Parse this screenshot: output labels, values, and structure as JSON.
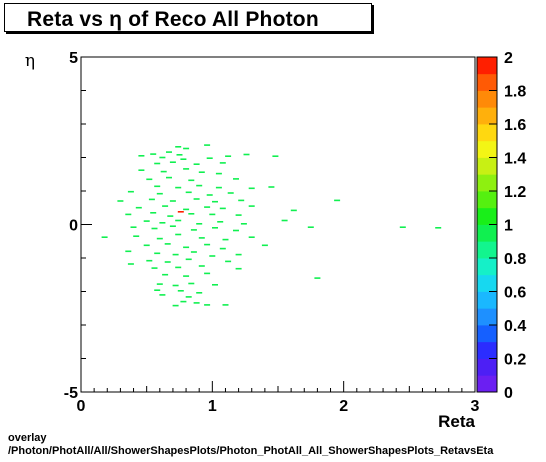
{
  "title": "Reta vs  η of Reco All Photon",
  "footer": {
    "line1": "overlay",
    "line2": "/Photon/PhotAll/All/ShowerShapesPlots/Photon_PhotAll_All_ShowerShapesPlots_RetavsEta"
  },
  "chart_data": {
    "type": "heatmap",
    "title": "Reta vs  η of Reco All Photon",
    "xlabel": "Reta",
    "ylabel": "η",
    "xlim": [
      0,
      3
    ],
    "ylim": [
      -5,
      5
    ],
    "x_ticks": [
      "0",
      "1",
      "2",
      "3"
    ],
    "y_ticks": [
      "-5",
      "0",
      "5"
    ],
    "colorbar": {
      "range": [
        0,
        2
      ],
      "ticks": [
        "0",
        "0.2",
        "0.4",
        "0.6",
        "0.8",
        "1",
        "1.2",
        "1.4",
        "1.6",
        "1.8",
        "2"
      ],
      "colors": [
        "#6b1ff2",
        "#4d1ff5",
        "#2b2dff",
        "#1560ff",
        "#1e90ff",
        "#1ab8ff",
        "#17d8f0",
        "#15f0c8",
        "#12f58e",
        "#10f050",
        "#19ef19",
        "#55f010",
        "#8ef010",
        "#c8f014",
        "#f3f515",
        "#ffd810",
        "#ffb00c",
        "#ff8a08",
        "#ff5a05",
        "#ff1f00"
      ]
    },
    "bins": [
      [
        0.74,
        2.32,
        1
      ],
      [
        0.8,
        2.27,
        1
      ],
      [
        0.96,
        2.37,
        1
      ],
      [
        0.67,
        2.16,
        1
      ],
      [
        0.75,
        2.08,
        1
      ],
      [
        0.46,
        2.05,
        1
      ],
      [
        0.55,
        2.1,
        1
      ],
      [
        0.62,
        2.0,
        1
      ],
      [
        0.78,
        1.95,
        1
      ],
      [
        0.98,
        1.98,
        1
      ],
      [
        1.12,
        2.04,
        1
      ],
      [
        1.26,
        2.09,
        1
      ],
      [
        1.48,
        2.04,
        1
      ],
      [
        0.58,
        1.82,
        1
      ],
      [
        0.7,
        1.86,
        1
      ],
      [
        0.88,
        1.8,
        1
      ],
      [
        1.08,
        1.84,
        1
      ],
      [
        0.46,
        1.62,
        1
      ],
      [
        0.63,
        1.58,
        1
      ],
      [
        0.8,
        1.66,
        1
      ],
      [
        0.92,
        1.56,
        1
      ],
      [
        1.05,
        1.52,
        1
      ],
      [
        0.52,
        1.35,
        1
      ],
      [
        0.67,
        1.4,
        1
      ],
      [
        0.84,
        1.32,
        1
      ],
      [
        1.18,
        1.36,
        1
      ],
      [
        0.58,
        1.14,
        1
      ],
      [
        0.74,
        1.1,
        1
      ],
      [
        0.9,
        1.16,
        1
      ],
      [
        1.05,
        1.1,
        1
      ],
      [
        1.3,
        1.08,
        1
      ],
      [
        0.38,
        0.98,
        1
      ],
      [
        0.6,
        0.92,
        1
      ],
      [
        0.82,
        0.96,
        1
      ],
      [
        0.98,
        0.88,
        1
      ],
      [
        1.14,
        0.94,
        1
      ],
      [
        1.45,
        1.12,
        1
      ],
      [
        0.54,
        0.75,
        1
      ],
      [
        0.7,
        0.7,
        1
      ],
      [
        0.88,
        0.76,
        1
      ],
      [
        1.02,
        0.68,
        1
      ],
      [
        1.22,
        0.72,
        1
      ],
      [
        0.3,
        0.7,
        1
      ],
      [
        0.44,
        0.5,
        1
      ],
      [
        0.64,
        0.55,
        1
      ],
      [
        0.8,
        0.45,
        1
      ],
      [
        0.96,
        0.52,
        1
      ],
      [
        1.08,
        0.48,
        1
      ],
      [
        1.3,
        0.55,
        1
      ],
      [
        1.95,
        0.72,
        1
      ],
      [
        0.36,
        0.3,
        1
      ],
      [
        0.55,
        0.35,
        1
      ],
      [
        0.68,
        0.25,
        1
      ],
      [
        0.84,
        0.32,
        1
      ],
      [
        0.76,
        0.38,
        2
      ],
      [
        1.0,
        0.3,
        1
      ],
      [
        1.2,
        0.28,
        1
      ],
      [
        1.62,
        0.42,
        1
      ],
      [
        0.5,
        0.1,
        1
      ],
      [
        0.62,
        0.05,
        1
      ],
      [
        0.74,
        0.12,
        1
      ],
      [
        0.9,
        0.02,
        1
      ],
      [
        1.06,
        0.08,
        1
      ],
      [
        1.24,
        0.02,
        1
      ],
      [
        1.55,
        0.12,
        1
      ],
      [
        0.4,
        -0.08,
        1
      ],
      [
        0.56,
        -0.12,
        1
      ],
      [
        0.7,
        -0.05,
        1
      ],
      [
        0.86,
        -0.16,
        1
      ],
      [
        1.02,
        -0.1,
        1
      ],
      [
        1.18,
        -0.18,
        1
      ],
      [
        1.75,
        -0.08,
        1
      ],
      [
        2.45,
        -0.08,
        1
      ],
      [
        2.72,
        -0.1,
        1
      ],
      [
        0.18,
        -0.38,
        1
      ],
      [
        0.42,
        -0.35,
        1
      ],
      [
        0.6,
        -0.42,
        1
      ],
      [
        0.74,
        -0.3,
        1
      ],
      [
        0.92,
        -0.4,
        1
      ],
      [
        1.1,
        -0.45,
        1
      ],
      [
        1.3,
        -0.38,
        1
      ],
      [
        0.5,
        -0.62,
        1
      ],
      [
        0.66,
        -0.58,
        1
      ],
      [
        0.8,
        -0.68,
        1
      ],
      [
        0.96,
        -0.6,
        1
      ],
      [
        1.08,
        -0.72,
        1
      ],
      [
        1.4,
        -0.62,
        1
      ],
      [
        0.36,
        -0.8,
        1
      ],
      [
        0.58,
        -0.86,
        1
      ],
      [
        0.72,
        -0.9,
        1
      ],
      [
        0.86,
        -0.82,
        1
      ],
      [
        1.0,
        -0.94,
        1
      ],
      [
        1.2,
        -0.9,
        1
      ],
      [
        0.52,
        -1.08,
        1
      ],
      [
        0.66,
        -1.12,
        1
      ],
      [
        0.82,
        -1.04,
        1
      ],
      [
        1.12,
        -1.1,
        1
      ],
      [
        0.38,
        -1.18,
        1
      ],
      [
        0.56,
        -1.3,
        1
      ],
      [
        0.74,
        -1.28,
        1
      ],
      [
        0.92,
        -1.24,
        1
      ],
      [
        1.2,
        -1.32,
        1
      ],
      [
        0.64,
        -1.5,
        1
      ],
      [
        0.8,
        -1.54,
        1
      ],
      [
        0.96,
        -1.46,
        1
      ],
      [
        1.8,
        -1.6,
        1
      ],
      [
        0.6,
        -1.78,
        1
      ],
      [
        0.72,
        -1.82,
        1
      ],
      [
        0.84,
        -1.76,
        1
      ],
      [
        1.02,
        -1.8,
        1
      ],
      [
        0.58,
        -1.96,
        1
      ],
      [
        0.76,
        -1.98,
        1
      ],
      [
        0.9,
        -2.04,
        1
      ],
      [
        0.62,
        -2.1,
        1
      ],
      [
        0.82,
        -2.16,
        1
      ],
      [
        0.78,
        -2.3,
        1
      ],
      [
        0.88,
        -2.34,
        1
      ],
      [
        0.96,
        -2.4,
        1
      ],
      [
        0.72,
        -2.42,
        1
      ],
      [
        1.1,
        -2.4,
        1
      ]
    ]
  }
}
